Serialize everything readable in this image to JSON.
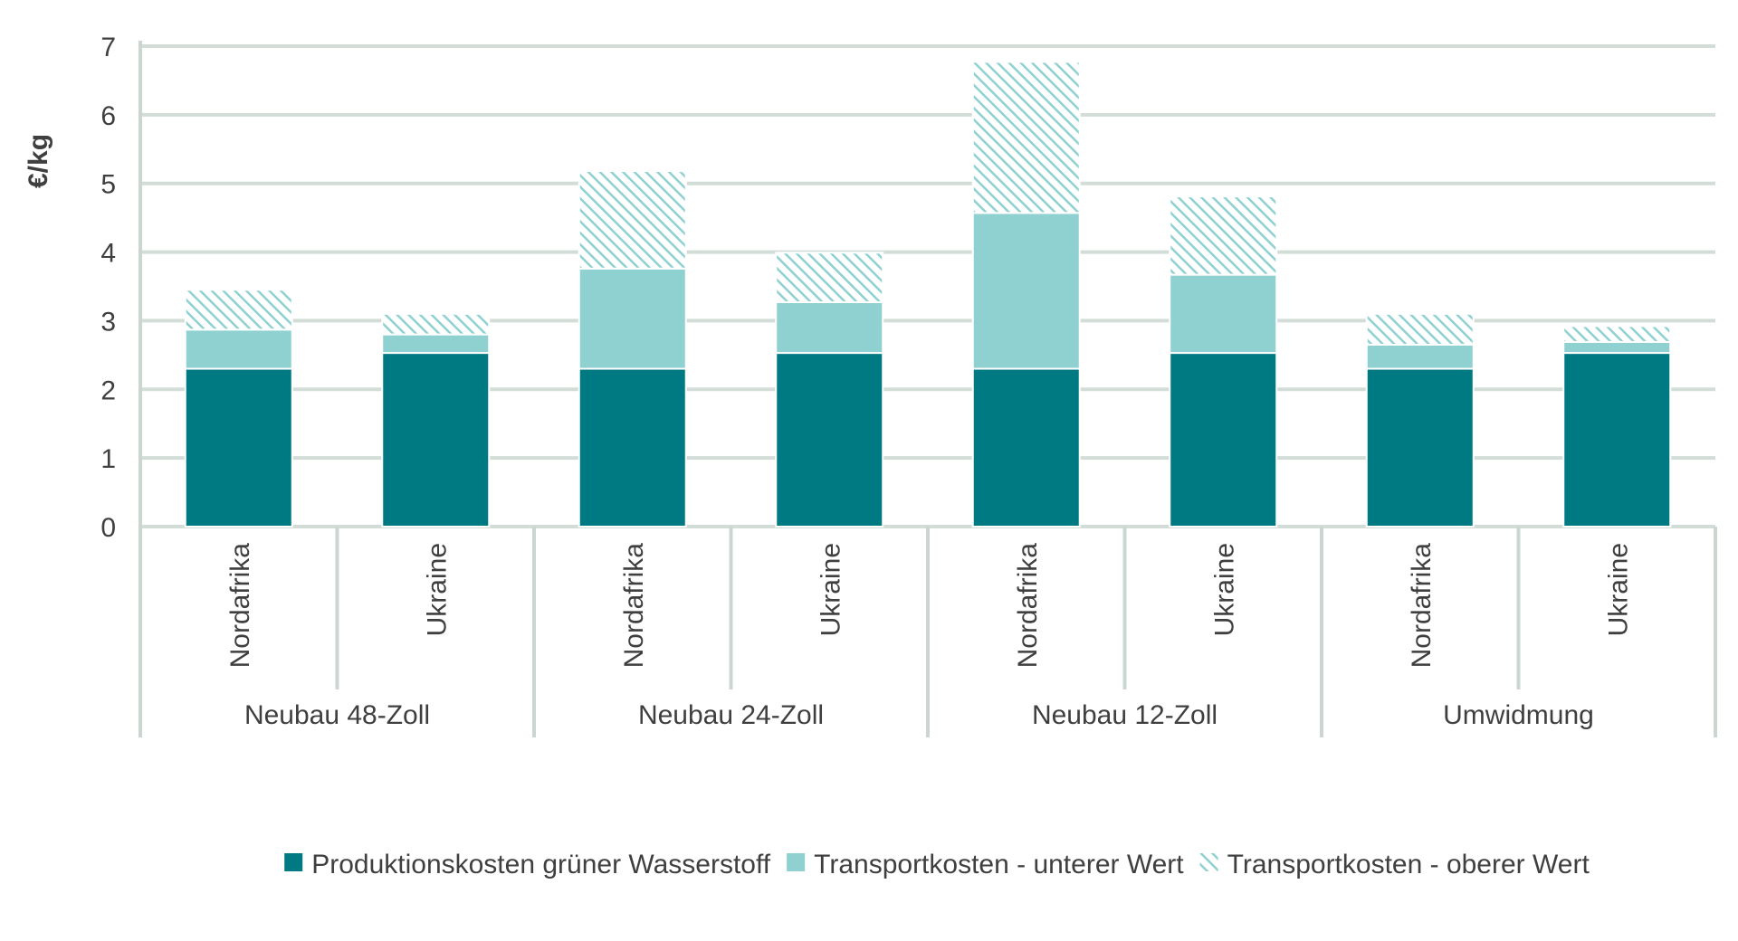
{
  "chart_data": {
    "type": "bar",
    "stacked": true,
    "ylabel": "€/kg",
    "ylim": [
      0,
      7
    ],
    "yticks": [
      0,
      1,
      2,
      3,
      4,
      5,
      6,
      7
    ],
    "grid": true,
    "legend_position": "bottom",
    "groups": [
      {
        "label": "Neubau 48-Zoll",
        "categories": [
          "Nordafrika",
          "Ukraine"
        ]
      },
      {
        "label": "Neubau 24-Zoll",
        "categories": [
          "Nordafrika",
          "Ukraine"
        ]
      },
      {
        "label": "Neubau 12-Zoll",
        "categories": [
          "Nordafrika",
          "Ukraine"
        ]
      },
      {
        "label": "Umwidmung",
        "categories": [
          "Nordafrika",
          "Ukraine"
        ]
      }
    ],
    "series": [
      {
        "name": "Produktionskosten grüner Wasserstoff",
        "color": "#007a82",
        "pattern": "solid",
        "values": [
          2.3,
          2.53,
          2.3,
          2.53,
          2.3,
          2.53,
          2.3,
          2.53
        ]
      },
      {
        "name": "Transportkosten - unterer Wert",
        "color": "#8fd0d0",
        "pattern": "solid",
        "values": [
          0.57,
          0.27,
          1.46,
          0.74,
          2.27,
          1.14,
          0.35,
          0.16
        ]
      },
      {
        "name": "Transportkosten - oberer Wert",
        "color": "#8fd0d0",
        "pattern": "hatched",
        "values": [
          0.58,
          0.3,
          1.42,
          0.72,
          2.2,
          1.14,
          0.45,
          0.23
        ]
      }
    ]
  }
}
